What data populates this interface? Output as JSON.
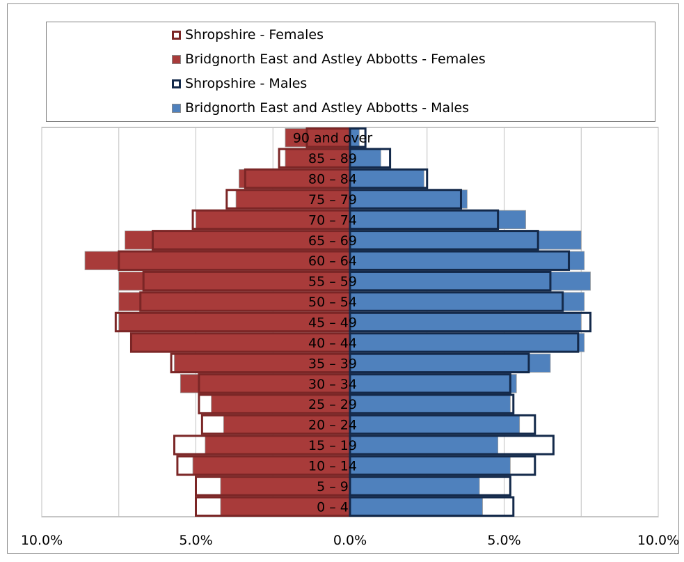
{
  "chart_data": {
    "type": "bar",
    "orientation": "horizontal-population-pyramid",
    "x_ticks": [
      "10.0%",
      "5.0%",
      "0.0%",
      "5.0%",
      "10.0%"
    ],
    "xlim": [
      -10,
      10
    ],
    "grid": true,
    "legend_position": "top",
    "categories": [
      "90 and over",
      "85 – 89",
      "80 – 84",
      "75 – 79",
      "70 – 74",
      "65 – 69",
      "60 – 64",
      "55 – 59",
      "50 – 54",
      "45 – 49",
      "40 – 44",
      "35 – 39",
      "30 – 34",
      "25 – 29",
      "20 – 24",
      "15 – 19",
      "10 – 14",
      "5 – 9",
      "0 – 4"
    ],
    "series": [
      {
        "name": "Shropshire - Females",
        "style": "outline",
        "color": "#7b2626",
        "values": [
          1.4,
          2.3,
          3.4,
          4.0,
          5.1,
          6.4,
          7.5,
          6.7,
          6.8,
          7.6,
          7.1,
          5.8,
          4.9,
          4.9,
          4.8,
          5.7,
          5.6,
          5.0,
          5.0
        ]
      },
      {
        "name": "Bridgnorth East and Astley Abbotts - Females",
        "style": "filled",
        "color": "#a83b3a",
        "values": [
          2.1,
          2.1,
          3.6,
          3.7,
          5.0,
          7.3,
          8.6,
          7.5,
          7.5,
          7.5,
          7.1,
          5.7,
          5.5,
          4.5,
          4.1,
          4.7,
          5.1,
          4.2,
          4.2
        ]
      },
      {
        "name": "Shropshire - Males",
        "style": "outline",
        "color": "#13294a",
        "values": [
          0.5,
          1.3,
          2.5,
          3.6,
          4.8,
          6.1,
          7.1,
          6.5,
          6.9,
          7.8,
          7.4,
          5.8,
          5.2,
          5.3,
          6.0,
          6.6,
          6.0,
          5.2,
          5.3
        ]
      },
      {
        "name": "Bridgnorth East and Astley Abbotts - Males",
        "style": "filled",
        "color": "#4f81bd",
        "values": [
          0.3,
          1.0,
          2.4,
          3.8,
          5.7,
          7.5,
          7.6,
          7.8,
          7.6,
          7.5,
          7.6,
          6.5,
          5.4,
          5.2,
          5.5,
          4.8,
          5.2,
          4.2,
          4.3
        ]
      }
    ]
  }
}
